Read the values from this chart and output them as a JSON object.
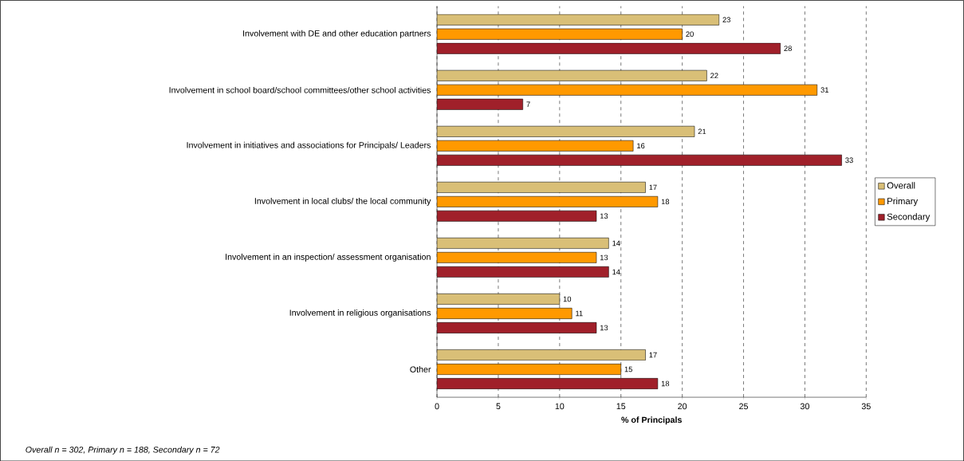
{
  "chart_data": {
    "type": "bar",
    "orientation": "horizontal",
    "xlabel": "% of Principals",
    "categories": [
      "Involvement with DE and other education partners",
      "Involvement in school board/school committees/other school activities",
      "Involvement in initiatives and associations for Principals/ Leaders",
      "Involvement in local clubs/ the local community",
      "Involvement in an inspection/ assessment organisation",
      "Involvement in religious organisations",
      "Other"
    ],
    "series": [
      {
        "name": "Overall",
        "color": "#d9bf77",
        "values": [
          23,
          22,
          21,
          17,
          14,
          10,
          17
        ]
      },
      {
        "name": "Primary",
        "color": "#ff9900",
        "values": [
          20,
          31,
          16,
          18,
          13,
          11,
          15
        ]
      },
      {
        "name": "Secondary",
        "color": "#a0202a",
        "values": [
          28,
          7,
          33,
          13,
          14,
          13,
          18
        ]
      }
    ],
    "xlim": [
      0,
      35
    ],
    "xticks": [
      0,
      5,
      10,
      15,
      20,
      25,
      30,
      35
    ],
    "grid": "x",
    "legend": "right",
    "data_labels": true,
    "annotations": [
      "Overall n = 302, Primary n = 188, Secondary n = 72"
    ]
  }
}
